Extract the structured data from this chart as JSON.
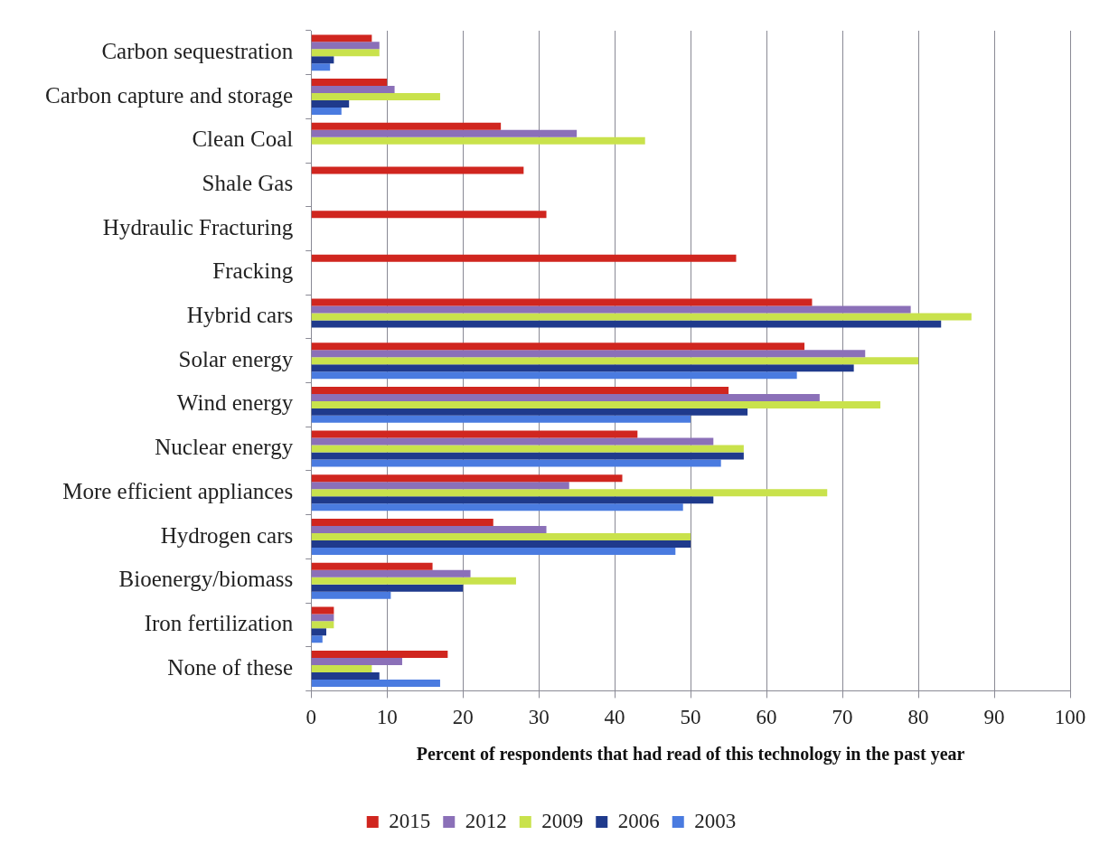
{
  "chart_data": {
    "type": "bar",
    "orientation": "horizontal",
    "xlabel": "Percent of respondents that had read of this technology in the past year",
    "categories": [
      "Carbon sequestration",
      "Carbon capture and storage",
      "Clean Coal",
      "Shale Gas",
      "Hydraulic Fracturing",
      "Fracking",
      "Hybrid cars",
      "Solar energy",
      "Wind energy",
      "Nuclear energy",
      "More efficient appliances",
      "Hydrogen cars",
      "Bioenergy/biomass",
      "Iron fertilization",
      "None of these"
    ],
    "series": [
      {
        "name": "2015",
        "color": "#d0261f",
        "values": [
          8,
          10,
          25,
          28,
          31,
          56,
          66,
          65,
          55,
          43,
          41,
          24,
          16,
          3,
          18
        ]
      },
      {
        "name": "2012",
        "color": "#8b70b8",
        "values": [
          9,
          11,
          35,
          null,
          null,
          null,
          79,
          73,
          67,
          53,
          34,
          31,
          21,
          3,
          12
        ]
      },
      {
        "name": "2009",
        "color": "#c9e24c",
        "values": [
          9,
          17,
          44,
          null,
          null,
          null,
          87,
          80,
          75,
          57,
          68,
          50,
          27,
          3,
          8
        ]
      },
      {
        "name": "2006",
        "color": "#1f3a8c",
        "values": [
          3,
          5,
          null,
          null,
          null,
          null,
          83,
          71.5,
          57.5,
          57,
          53,
          50,
          20,
          2,
          9
        ]
      },
      {
        "name": "2003",
        "color": "#4a7be0",
        "values": [
          2.5,
          4,
          null,
          null,
          null,
          null,
          null,
          64,
          50,
          54,
          49,
          48,
          10.5,
          1.5,
          17
        ]
      }
    ],
    "xlim": [
      0,
      100
    ],
    "xticks": [
      0,
      10,
      20,
      30,
      40,
      50,
      60,
      70,
      80,
      90,
      100
    ],
    "grid": "x",
    "legend": "bottom"
  }
}
